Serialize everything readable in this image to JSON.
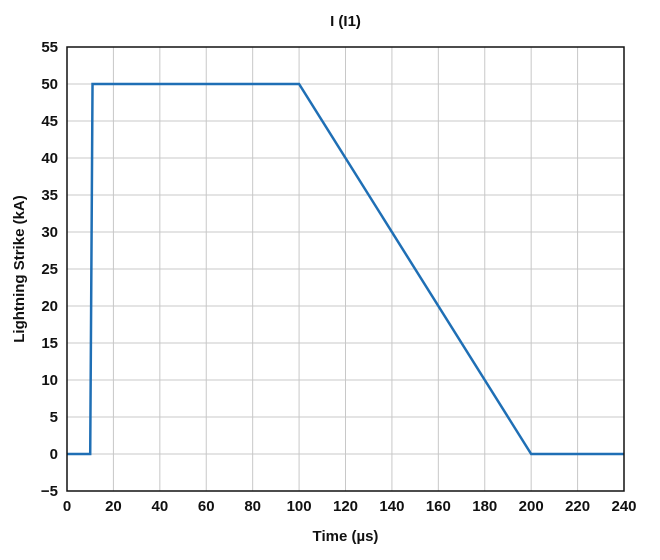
{
  "chart_data": {
    "type": "line",
    "title": "I (I1)",
    "xlabel": "Time (µs)",
    "ylabel": "Lightning Strike (kA)",
    "xlim": [
      0,
      240
    ],
    "ylim": [
      -5,
      55
    ],
    "xticks": [
      0,
      20,
      40,
      60,
      80,
      100,
      120,
      140,
      160,
      180,
      200,
      220,
      240
    ],
    "yticks": [
      -5,
      0,
      5,
      10,
      15,
      20,
      25,
      30,
      35,
      40,
      45,
      50,
      55
    ],
    "xtick_labels": [
      "0",
      "20",
      "40",
      "60",
      "80",
      "100",
      "120",
      "140",
      "160",
      "180",
      "200",
      "220",
      "240"
    ],
    "ytick_labels": [
      "−5",
      "0",
      "5",
      "10",
      "15",
      "20",
      "25",
      "30",
      "35",
      "40",
      "45",
      "50",
      "55"
    ],
    "grid": true,
    "line_color": "#1f6fb5",
    "grid_color": "#c8c8c8",
    "series": [
      {
        "x": [
          0,
          10,
          11,
          100,
          200,
          240
        ],
        "y": [
          0,
          0,
          50,
          50,
          0,
          0
        ]
      }
    ]
  }
}
